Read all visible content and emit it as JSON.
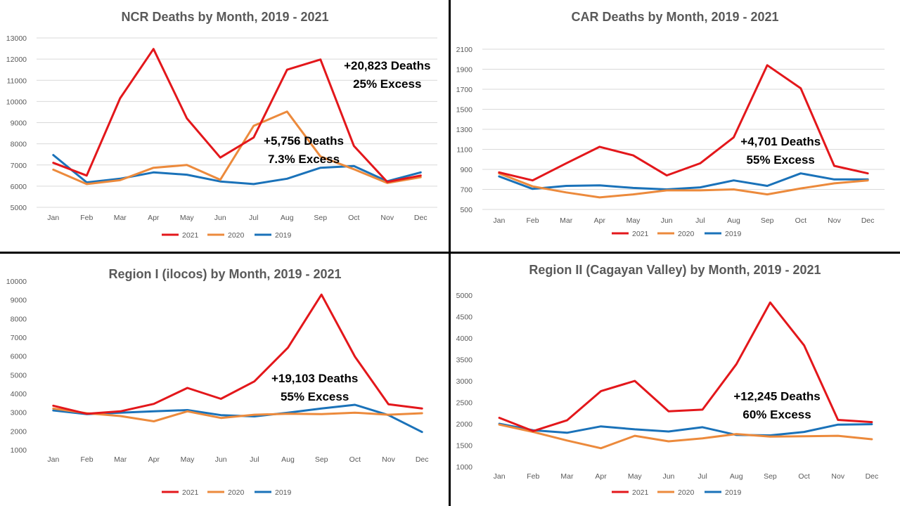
{
  "colors": {
    "2021": "#e3171b",
    "2020": "#ec8a3c",
    "2019": "#1a72b9"
  },
  "chart_data": [
    {
      "type": "line",
      "title": "NCR Deaths by Month, 2019 - 2021",
      "categories": [
        "Jan",
        "Feb",
        "Mar",
        "Apr",
        "May",
        "Jun",
        "Jul",
        "Aug",
        "Sep",
        "Oct",
        "Nov",
        "Dec"
      ],
      "ylim": [
        5000,
        13000
      ],
      "yticks": [
        5000,
        6000,
        7000,
        8000,
        9000,
        10000,
        11000,
        12000,
        13000
      ],
      "grid": true,
      "legend": "bottom",
      "series": [
        {
          "name": "2021",
          "color": "#e3171b",
          "values": [
            7100,
            6500,
            10150,
            12480,
            9200,
            7350,
            8300,
            11500,
            11980,
            7900,
            6200,
            6500
          ]
        },
        {
          "name": "2020",
          "color": "#ec8a3c",
          "values": [
            6780,
            6100,
            6280,
            6870,
            7000,
            6300,
            8850,
            9520,
            7400,
            6800,
            6150,
            6420
          ]
        },
        {
          "name": "2019",
          "color": "#1a72b9",
          "values": [
            7470,
            6180,
            6350,
            6650,
            6540,
            6220,
            6100,
            6350,
            6870,
            6950,
            6230,
            6650
          ]
        }
      ],
      "annotations": [
        {
          "lines": [
            "+20,823 Deaths",
            "25% Excess"
          ],
          "x": 10,
          "y": 11500
        },
        {
          "lines": [
            "+5,756 Deaths",
            "7.3% Excess"
          ],
          "x": 7.5,
          "y": 7950
        }
      ]
    },
    {
      "type": "line",
      "title": "CAR Deaths by Month, 2019 - 2021",
      "categories": [
        "Jan",
        "Feb",
        "Mar",
        "Apr",
        "May",
        "Jun",
        "Jul",
        "Aug",
        "Sep",
        "Oct",
        "Nov",
        "Dec"
      ],
      "ylim": [
        500,
        2100
      ],
      "yticks": [
        500,
        700,
        900,
        1100,
        1300,
        1500,
        1700,
        1900,
        2100
      ],
      "grid": true,
      "legend": "bottom",
      "series": [
        {
          "name": "2021",
          "color": "#e3171b",
          "values": [
            870,
            790,
            960,
            1125,
            1040,
            840,
            960,
            1220,
            1940,
            1710,
            935,
            860
          ]
        },
        {
          "name": "2020",
          "color": "#ec8a3c",
          "values": [
            860,
            730,
            670,
            620,
            650,
            690,
            690,
            700,
            650,
            710,
            760,
            790
          ]
        },
        {
          "name": "2019",
          "color": "#1a72b9",
          "values": [
            830,
            705,
            735,
            740,
            715,
            700,
            720,
            790,
            735,
            860,
            800,
            800
          ]
        }
      ],
      "annotations": [
        {
          "lines": [
            "+4,701 Deaths",
            "55% Excess"
          ],
          "x": 8.4,
          "y": 1140
        }
      ]
    },
    {
      "type": "line",
      "title": "Region I (ilocos) by Month, 2019 - 2021",
      "categories": [
        "Jan",
        "Feb",
        "Mar",
        "Apr",
        "May",
        "Jun",
        "Jul",
        "Aug",
        "Sep",
        "Oct",
        "Nov",
        "Dec"
      ],
      "ylim": [
        1000,
        10000
      ],
      "yticks": [
        1000,
        2000,
        3000,
        4000,
        5000,
        6000,
        7000,
        8000,
        9000,
        10000
      ],
      "grid": false,
      "legend": "bottom",
      "series": [
        {
          "name": "2021",
          "color": "#e3171b",
          "values": [
            3350,
            2920,
            3050,
            3450,
            4300,
            3720,
            4650,
            6450,
            9280,
            5970,
            3430,
            3200
          ]
        },
        {
          "name": "2020",
          "color": "#ec8a3c",
          "values": [
            3200,
            2950,
            2800,
            2520,
            3050,
            2700,
            2870,
            2920,
            2900,
            2980,
            2870,
            2950
          ]
        },
        {
          "name": "2019",
          "color": "#1a72b9",
          "values": [
            3100,
            2900,
            2980,
            3050,
            3120,
            2850,
            2780,
            2980,
            3200,
            3400,
            2850,
            1950
          ]
        }
      ],
      "annotations": [
        {
          "lines": [
            "+19,103 Deaths",
            "55% Excess"
          ],
          "x": 7.8,
          "y": 4600
        }
      ]
    },
    {
      "type": "line",
      "title": "Region II (Cagayan Valley) by Month, 2019 - 2021",
      "categories": [
        "Jan",
        "Feb",
        "Mar",
        "Apr",
        "May",
        "Jun",
        "Jul",
        "Aug",
        "Sep",
        "Oct",
        "Nov",
        "Dec"
      ],
      "ylim": [
        1000,
        5000
      ],
      "yticks": [
        1000,
        1500,
        2000,
        2500,
        3000,
        3500,
        4000,
        4500,
        5000
      ],
      "grid": false,
      "legend": "bottom",
      "series": [
        {
          "name": "2021",
          "color": "#e3171b",
          "values": [
            2140,
            1830,
            2080,
            2760,
            3000,
            2290,
            2330,
            3390,
            4830,
            3830,
            2090,
            2040
          ]
        },
        {
          "name": "2020",
          "color": "#ec8a3c",
          "values": [
            1980,
            1810,
            1610,
            1430,
            1720,
            1590,
            1660,
            1760,
            1700,
            1710,
            1720,
            1640
          ]
        },
        {
          "name": "2019",
          "color": "#1a72b9",
          "values": [
            2000,
            1850,
            1790,
            1940,
            1870,
            1820,
            1920,
            1740,
            1730,
            1810,
            1980,
            1990
          ]
        }
      ],
      "annotations": [
        {
          "lines": [
            "+12,245 Deaths",
            "60% Excess"
          ],
          "x": 8.2,
          "y": 2550
        }
      ]
    }
  ]
}
